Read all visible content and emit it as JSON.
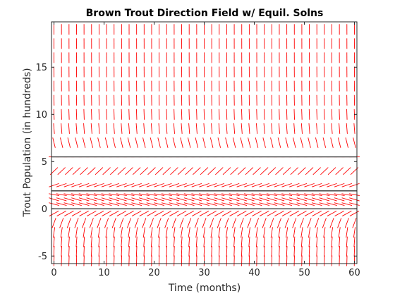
{
  "chart_data": {
    "type": "direction-field",
    "title": "Brown Trout Direction Field w/ Equil. Solns",
    "xlabel": "Time (months)",
    "ylabel": "Trout Population (in hundreds)",
    "xlim": [
      -0.5,
      60.5
    ],
    "ylim": [
      -5.8,
      19.8
    ],
    "xticks": [
      0,
      10,
      20,
      30,
      40,
      50,
      60
    ],
    "yticks": [
      -5,
      0,
      5,
      10,
      15
    ],
    "grid": false,
    "field": {
      "t_values": [
        0,
        1.5,
        3,
        4.5,
        6,
        7.5,
        9,
        10.5,
        12,
        13.5,
        15,
        16.5,
        18,
        19.5,
        21,
        22.5,
        24,
        25.5,
        27,
        28.5,
        30,
        31.5,
        33,
        34.5,
        36,
        37.5,
        39,
        40.5,
        42,
        43.5,
        45,
        46.5,
        48,
        49.5,
        51,
        52.5,
        54,
        55.5,
        57,
        58.5,
        60
      ],
      "y_values": [
        -5.5,
        -4.5,
        -3.5,
        -2.5,
        -1.5,
        -0.5,
        0.5,
        1,
        1.5,
        2.5,
        4,
        5.5,
        7,
        8.5,
        10,
        11.5,
        13,
        14.5,
        16,
        17.5,
        19
      ],
      "equation": "dy/dt = -0.04 * y * (y - 1.9) * (y - 5.5)",
      "color": "#ff0000"
    },
    "equilibrium_solutions": [
      0,
      1.9,
      5.5
    ],
    "equilibrium_color": "#333333"
  }
}
